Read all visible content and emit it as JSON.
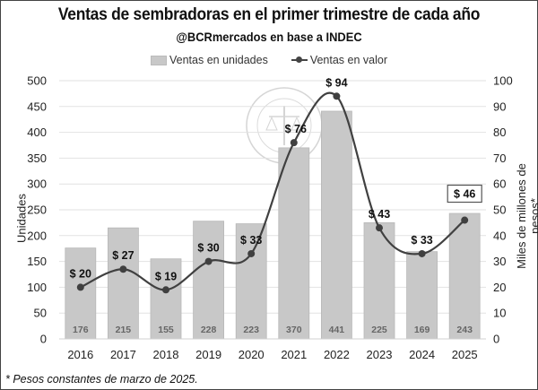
{
  "chart_data": {
    "type": "bar+line",
    "title": "Ventas de sembradoras en el primer trimestre de cada año",
    "subtitle": "@BCRmercados en base a INDEC",
    "categories": [
      "2016",
      "2017",
      "2018",
      "2019",
      "2020",
      "2021",
      "2022",
      "2023",
      "2024",
      "2025"
    ],
    "series": [
      {
        "name": "Ventas en unidades",
        "type": "bar",
        "axis": "left",
        "values": [
          176,
          215,
          155,
          228,
          223,
          370,
          441,
          225,
          169,
          243
        ],
        "color": "#c8c8c8"
      },
      {
        "name": "Ventas en valor",
        "type": "line",
        "axis": "right",
        "values": [
          20,
          27,
          19,
          30,
          33,
          76,
          94,
          43,
          33,
          46
        ],
        "value_labels": [
          "$ 20",
          "$ 27",
          "$ 19",
          "$ 30",
          "$ 33",
          "$ 76",
          "$ 94",
          "$ 43",
          "$ 33",
          "$ 46"
        ],
        "color": "#404040"
      }
    ],
    "ylabel_left": "Unidades",
    "ylabel_right": "Miles de millones de pesos*",
    "ylim_left": [
      0,
      500
    ],
    "yticks_left": [
      0,
      50,
      100,
      150,
      200,
      250,
      300,
      350,
      400,
      450,
      500
    ],
    "ylim_right": [
      0,
      100
    ],
    "yticks_right": [
      0,
      10,
      20,
      30,
      40,
      50,
      60,
      70,
      80,
      90,
      100
    ],
    "grid": true,
    "legend_position": "top-center",
    "highlighted_label": "$ 46",
    "footnote": "* Pesos constantes de marzo de 2025."
  },
  "watermark": "BOLSA DE COMERCIO DE ROSARIO"
}
